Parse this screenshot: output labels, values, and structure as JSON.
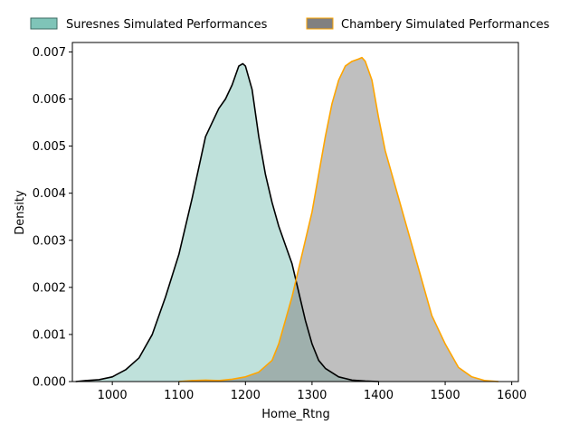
{
  "chart_data": {
    "type": "area",
    "title": "",
    "xlabel": "Home_Rtng",
    "ylabel": "Density",
    "xlim": [
      940,
      1610
    ],
    "ylim": [
      0,
      0.0072
    ],
    "x_ticks": [
      1000,
      1100,
      1200,
      1300,
      1400,
      1500,
      1600
    ],
    "x_tick_labels": [
      "1000",
      "1100",
      "1200",
      "1300",
      "1400",
      "1500",
      "1600"
    ],
    "y_ticks": [
      0,
      0.001,
      0.002,
      0.003,
      0.004,
      0.005,
      0.006,
      0.007
    ],
    "y_tick_labels": [
      "0.000",
      "0.001",
      "0.002",
      "0.003",
      "0.004",
      "0.005",
      "0.006",
      "0.007"
    ],
    "grid": false,
    "legend_position": "top",
    "series": [
      {
        "name": "Suresnes Simulated Performances",
        "fill_color": "#7fc4b8",
        "fill_opacity": 0.5,
        "line_color": "#000000",
        "legend_edge": "#3d6b63",
        "x": [
          945,
          960,
          980,
          1000,
          1020,
          1040,
          1060,
          1080,
          1100,
          1120,
          1140,
          1160,
          1170,
          1180,
          1190,
          1196,
          1200,
          1210,
          1220,
          1230,
          1240,
          1250,
          1260,
          1270,
          1280,
          1290,
          1300,
          1310,
          1320,
          1340,
          1360,
          1380,
          1400
        ],
        "y": [
          0.0,
          2e-05,
          4e-05,
          0.0001,
          0.00025,
          0.0005,
          0.001,
          0.0018,
          0.0027,
          0.0039,
          0.0052,
          0.0058,
          0.006,
          0.0063,
          0.0067,
          0.00675,
          0.0067,
          0.0062,
          0.0052,
          0.0044,
          0.0038,
          0.0033,
          0.0029,
          0.0025,
          0.0019,
          0.0013,
          0.0008,
          0.00045,
          0.00028,
          0.0001,
          3e-05,
          1e-05,
          0.0
        ]
      },
      {
        "name": "Chambery Simulated Performances",
        "fill_color": "#808080",
        "fill_opacity": 0.5,
        "line_color": "#ffa500",
        "legend_edge": "#ffa500",
        "x": [
          1100,
          1120,
          1140,
          1160,
          1180,
          1200,
          1220,
          1240,
          1250,
          1260,
          1270,
          1280,
          1290,
          1300,
          1310,
          1320,
          1330,
          1340,
          1350,
          1360,
          1370,
          1375,
          1380,
          1390,
          1400,
          1410,
          1420,
          1430,
          1440,
          1450,
          1460,
          1470,
          1480,
          1500,
          1520,
          1540,
          1560,
          1580
        ],
        "y": [
          0.0,
          2e-05,
          3e-05,
          2e-05,
          5e-05,
          0.0001,
          0.0002,
          0.00045,
          0.0008,
          0.0013,
          0.0018,
          0.0024,
          0.003,
          0.0036,
          0.0044,
          0.0052,
          0.0059,
          0.0064,
          0.0067,
          0.0068,
          0.00685,
          0.00688,
          0.0068,
          0.0064,
          0.0056,
          0.0049,
          0.0044,
          0.0039,
          0.0034,
          0.0029,
          0.0024,
          0.0019,
          0.0014,
          0.0008,
          0.0003,
          0.0001,
          2e-05,
          0.0
        ]
      }
    ]
  }
}
